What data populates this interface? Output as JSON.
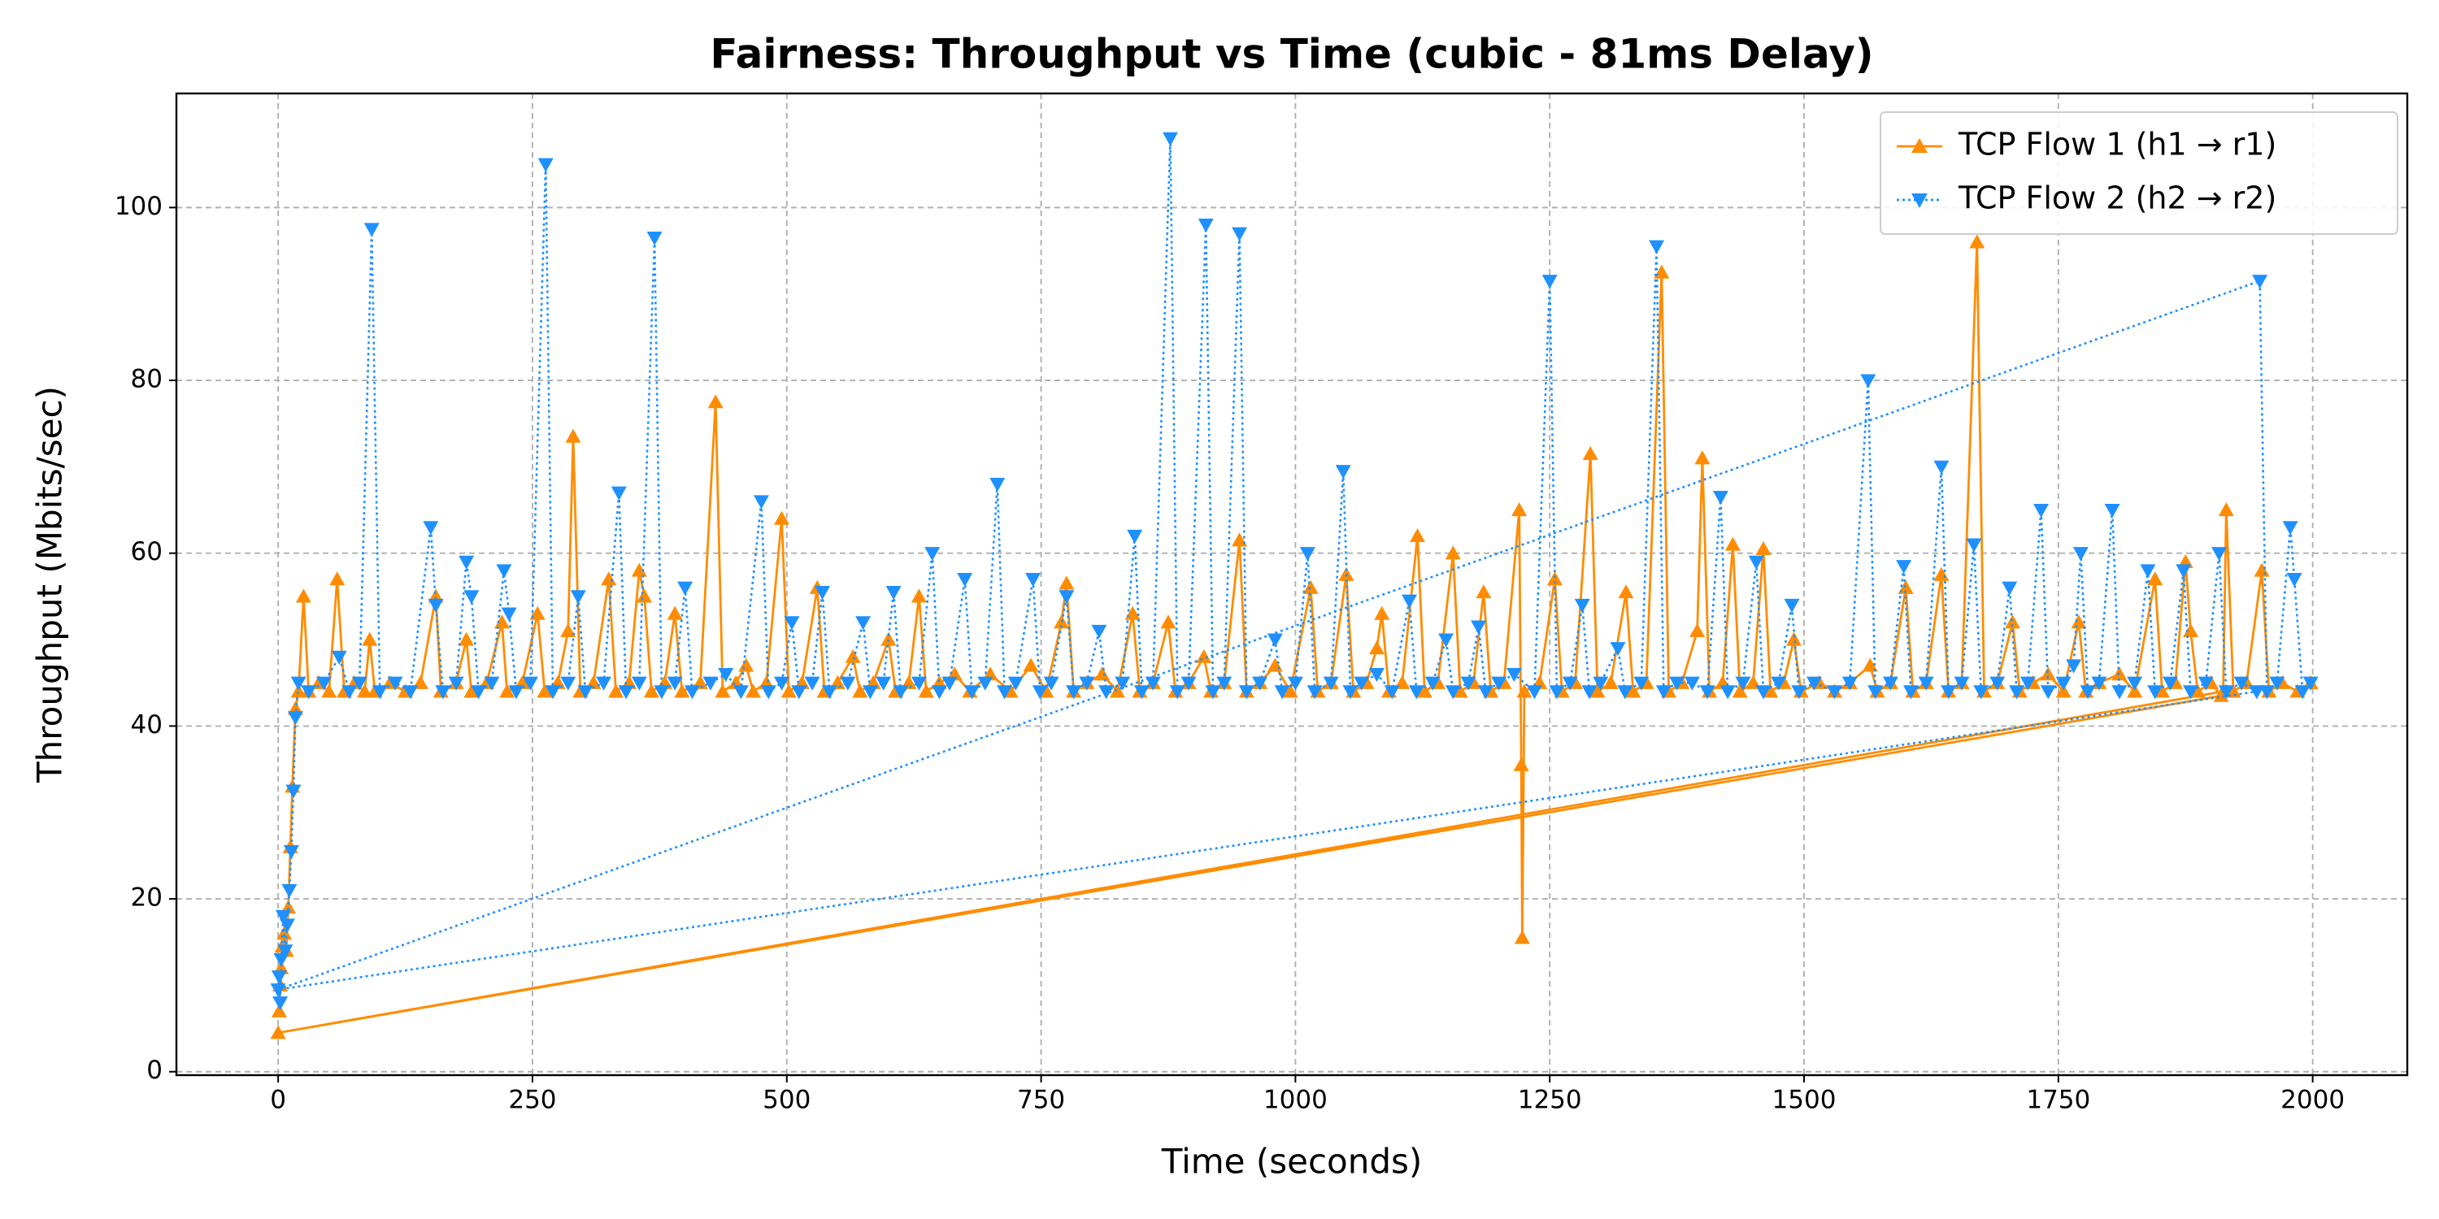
{
  "chart_data": {
    "type": "line",
    "title": "Fairness: Throughput vs Time (cubic - 81ms Delay)",
    "x_label": "Time (seconds)",
    "y_label": "Throughput (Mbits/sec)",
    "xlim": [
      -100,
      2093
    ],
    "ylim": [
      -0.4,
      113.2
    ],
    "xticks": [
      0,
      250,
      500,
      750,
      1000,
      1250,
      1500,
      1750,
      2000
    ],
    "yticks": [
      0,
      20,
      40,
      60,
      80,
      100
    ],
    "grid": true,
    "legend": "upper right",
    "series": [
      {
        "name": "TCP Flow 1 (h1 → r1)",
        "color": "#ff8c00",
        "marker": "triangle-up",
        "line_style": "solid",
        "x": [
          1,
          2,
          3,
          4,
          6,
          8,
          10,
          12,
          14,
          17,
          20,
          25,
          30,
          40,
          50,
          58,
          65,
          75,
          85,
          90,
          95,
          110,
          125,
          140,
          155,
          160,
          175,
          185,
          190,
          205,
          220,
          225,
          240,
          255,
          262,
          275,
          285,
          290,
          297,
          310,
          325,
          332,
          345,
          355,
          360,
          367,
          380,
          390,
          397,
          415,
          430,
          437,
          450,
          460,
          467,
          480,
          495,
          502,
          515,
          530,
          537,
          550,
          565,
          572,
          585,
          600,
          607,
          620,
          630,
          637,
          650,
          665,
          680,
          700,
          720,
          740,
          755,
          770,
          775,
          782,
          795,
          810,
          825,
          840,
          847,
          860,
          875,
          882,
          895,
          910,
          917,
          930,
          945,
          952,
          965,
          980,
          995,
          1015,
          1022,
          1035,
          1050,
          1057,
          1070,
          1080,
          1085,
          1092,
          1105,
          1120,
          1127,
          1140,
          1155,
          1162,
          1175,
          1185,
          1192,
          1205,
          1220,
          1222,
          1223,
          1225,
          1240,
          1255,
          1262,
          1275,
          1290,
          1297,
          1310,
          1325,
          1332,
          1345,
          1360,
          1367,
          1380,
          1395,
          1400,
          1407,
          1420,
          1430,
          1437,
          1450,
          1460,
          1467,
          1480,
          1490,
          1497,
          1515,
          1530,
          1545,
          1565,
          1572,
          1585,
          1600,
          1607,
          1620,
          1635,
          1642,
          1655,
          1670,
          1677,
          1690,
          1705,
          1712,
          1725,
          1740,
          1755,
          1770,
          1777,
          1790,
          1810,
          1825,
          1845,
          1852,
          1865,
          1875,
          1880,
          1887,
          1900,
          1910,
          0,
          1912,
          1915,
          1922,
          1935,
          1950,
          1957,
          1970,
          1985,
          1998
        ],
        "values": [
          7,
          10,
          12,
          14.5,
          16,
          14,
          19,
          26,
          33,
          42,
          44,
          55,
          44,
          45,
          44,
          57,
          44,
          45,
          44,
          50,
          44,
          45,
          44,
          45,
          55,
          44,
          45,
          50,
          44,
          45,
          52,
          44,
          45,
          53,
          44,
          45,
          51,
          73.5,
          44,
          45,
          57,
          44,
          45,
          58,
          55,
          44,
          45,
          53,
          44,
          45,
          77.5,
          44,
          45,
          47,
          44,
          45,
          64,
          44,
          45,
          56,
          44,
          45,
          48,
          44,
          45,
          50,
          44,
          45,
          55,
          44,
          45,
          46,
          44,
          46,
          44,
          47,
          44,
          52,
          56.5,
          44,
          45,
          46,
          44,
          53,
          44,
          45,
          52,
          44,
          45,
          48,
          44,
          45,
          61.5,
          44,
          45,
          47,
          44,
          56,
          44,
          45,
          57.5,
          44,
          45,
          49,
          53,
          44,
          45,
          62,
          44,
          45,
          60,
          44,
          45,
          55.5,
          44,
          45,
          65,
          35.5,
          15.5,
          44,
          45,
          57,
          44,
          45,
          71.5,
          44,
          45,
          55.5,
          44,
          45,
          92.5,
          44,
          45,
          51,
          71,
          44,
          45,
          61,
          44,
          45,
          60.5,
          44,
          45,
          50,
          44,
          45,
          44,
          45,
          47,
          44,
          45,
          56,
          44,
          45,
          57.5,
          44,
          45,
          96,
          44,
          45,
          52,
          44,
          45,
          46,
          44,
          52,
          44,
          45,
          46,
          44,
          57,
          44,
          45,
          59,
          51,
          44,
          45,
          43.5,
          4.5,
          44,
          65,
          44,
          45,
          58,
          44,
          45,
          44,
          45
        ]
      },
      {
        "name": "TCP Flow 2 (h2 → r2)",
        "color": "#1e90ff",
        "marker": "triangle-down",
        "line_style": "dotted",
        "x": [
          1,
          2,
          3,
          5,
          7,
          9,
          11,
          13,
          15,
          17,
          20,
          30,
          45,
          60,
          70,
          80,
          92,
          100,
          115,
          130,
          150,
          155,
          162,
          175,
          185,
          190,
          197,
          210,
          222,
          227,
          234,
          248,
          263,
          270,
          285,
          295,
          302,
          320,
          335,
          342,
          355,
          370,
          377,
          390,
          400,
          407,
          425,
          440,
          455,
          475,
          482,
          495,
          505,
          512,
          525,
          535,
          542,
          560,
          575,
          582,
          595,
          605,
          612,
          630,
          643,
          650,
          660,
          675,
          682,
          695,
          707,
          714,
          725,
          742,
          749,
          760,
          775,
          782,
          795,
          807,
          814,
          830,
          842,
          849,
          860,
          877,
          884,
          895,
          912,
          919,
          930,
          945,
          952,
          965,
          980,
          987,
          1000,
          1012,
          1019,
          1035,
          1047,
          1054,
          1065,
          1080,
          1095,
          1112,
          1119,
          1135,
          1148,
          1155,
          1170,
          1180,
          1187,
          1200,
          1215,
          1235,
          1250,
          1257,
          1270,
          1282,
          1289,
          1300,
          1317,
          1324,
          1340,
          1355,
          1362,
          1375,
          1390,
          1405,
          1418,
          1425,
          1440,
          1453,
          1460,
          1475,
          1488,
          1495,
          1510,
          1530,
          1545,
          1563,
          1570,
          1585,
          1598,
          1605,
          1620,
          1635,
          1642,
          1655,
          1667,
          1674,
          1690,
          1702,
          1709,
          1720,
          1733,
          1740,
          1755,
          1765,
          1772,
          1779,
          1790,
          1803,
          1810,
          1825,
          1838,
          1845,
          1860,
          1873,
          1880,
          1895,
          1908,
          1915,
          1930,
          1945,
          0,
          1948,
          1955,
          1965,
          1978,
          1982,
          1990,
          1998
        ],
        "values": [
          11,
          8,
          13,
          18,
          14,
          17,
          21,
          25.5,
          32.5,
          41,
          45,
          44,
          45,
          48,
          44,
          45,
          97.5,
          44,
          45,
          44,
          63,
          54,
          44,
          45,
          59,
          55,
          44,
          45,
          58,
          53,
          44,
          45,
          105,
          44,
          45,
          55,
          44,
          45,
          67,
          44,
          45,
          96.5,
          44,
          45,
          56,
          44,
          45,
          46,
          44,
          66,
          44,
          45,
          52,
          44,
          45,
          55.5,
          44,
          45,
          52,
          44,
          45,
          55.5,
          44,
          45,
          60,
          44,
          45,
          57,
          44,
          45,
          68,
          44,
          45,
          57,
          44,
          45,
          55,
          44,
          45,
          51,
          44,
          45,
          62,
          44,
          45,
          108,
          44,
          45,
          98,
          44,
          45,
          97,
          44,
          45,
          50,
          44,
          45,
          60,
          44,
          45,
          69.5,
          44,
          45,
          46,
          44,
          54.5,
          44,
          45,
          50,
          44,
          45,
          51.5,
          44,
          45,
          46,
          44,
          91.5,
          44,
          45,
          54,
          44,
          45,
          49,
          44,
          45,
          95.5,
          44,
          45,
          45,
          44,
          66.5,
          44,
          45,
          59,
          44,
          45,
          54,
          44,
          45,
          44,
          45,
          80,
          44,
          45,
          58.5,
          44,
          45,
          70,
          44,
          45,
          61,
          44,
          45,
          56,
          44,
          45,
          65,
          44,
          45,
          47,
          60,
          44,
          45,
          65,
          44,
          45,
          58,
          44,
          45,
          58,
          44,
          45,
          60,
          44,
          45,
          44,
          9.5,
          91.5,
          44,
          45,
          63,
          57,
          44,
          45
        ]
      }
    ]
  }
}
